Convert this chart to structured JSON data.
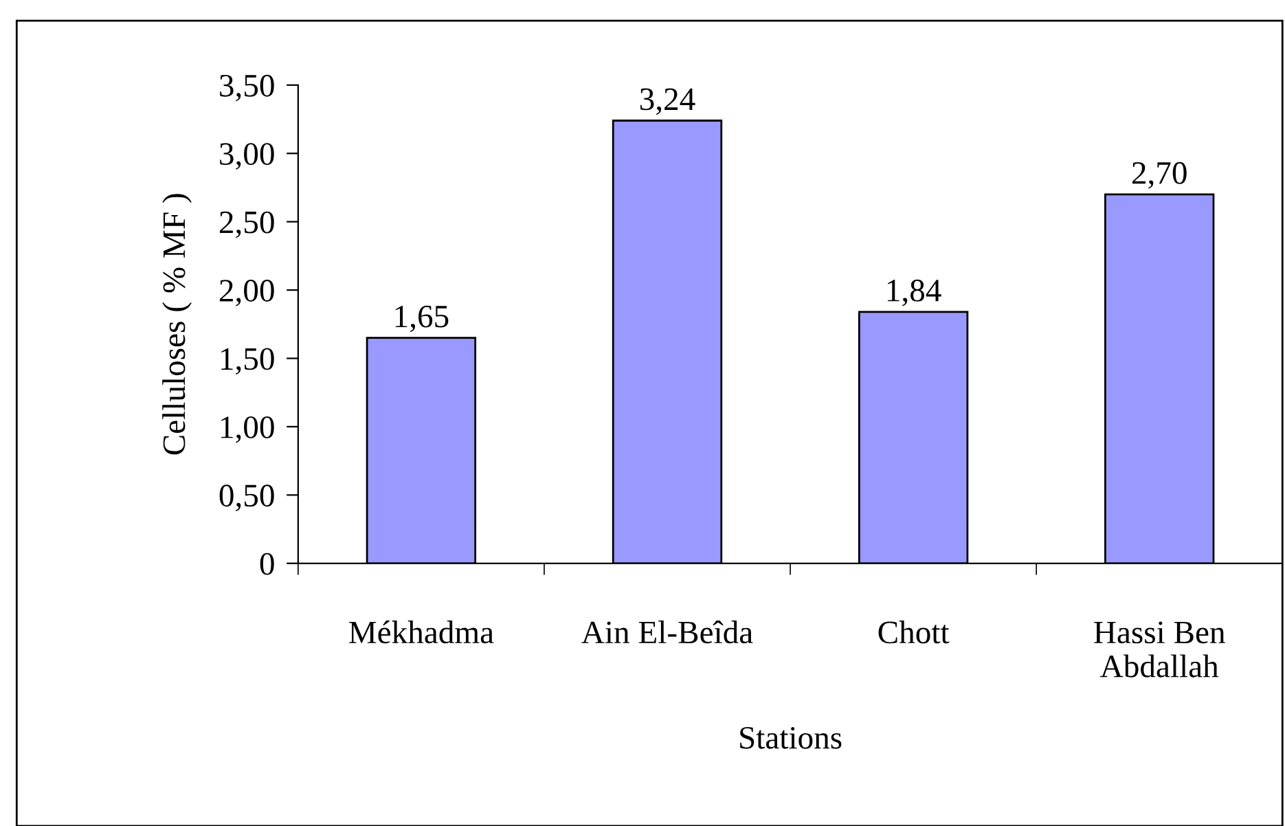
{
  "chart_data": {
    "type": "bar",
    "xlabel": "Stations",
    "ylabel": "Celluloses ( % MF )",
    "categories": [
      "Mékhadma",
      "Ain El-Beîda",
      "Chott",
      "Hassi Ben\nAbdallah"
    ],
    "values": [
      1.65,
      3.24,
      1.84,
      2.7
    ],
    "value_labels": [
      "1,65",
      "3,24",
      "1,84",
      "2,70"
    ],
    "color": "#9999ff",
    "ylim": [
      0,
      3.5
    ],
    "yticks": [
      0,
      {
        "value": 0.5,
        "label": "0,50"
      },
      {
        "value": 1.0,
        "label": "1,00"
      },
      {
        "value": 1.5,
        "label": "1,50"
      },
      {
        "value": 2.0,
        "label": "2,00"
      },
      {
        "value": 2.5,
        "label": "2,50"
      },
      {
        "value": 3.0,
        "label": "3,00"
      },
      {
        "value": 3.5,
        "label": "3,50"
      }
    ],
    "grid": false,
    "legend": false
  }
}
